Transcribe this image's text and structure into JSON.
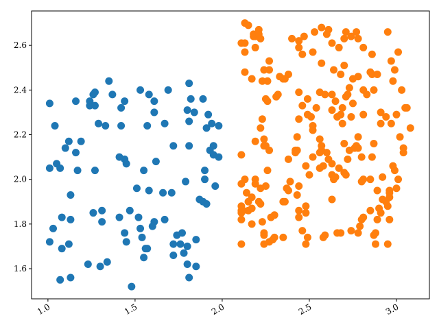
{
  "chart_data": {
    "type": "scatter",
    "xlim": [
      0.906,
      3.189
    ],
    "ylim": [
      1.465,
      2.754
    ],
    "xticks": [
      {
        "value": 1,
        "label": "1.0"
      },
      {
        "value": 1.5,
        "label": "1.5"
      },
      {
        "value": 2,
        "label": "2.0"
      },
      {
        "value": 2.5,
        "label": "2.5"
      },
      {
        "value": 3,
        "label": "3.0"
      }
    ],
    "yticks": [
      1.6,
      1.8,
      {
        "value": 2,
        "label": "2.0"
      },
      2.2,
      2.4,
      2.6
    ],
    "grid": false,
    "series": [
      {
        "color": "#1f77b4",
        "x": [
          1.01,
          1.04,
          1.01,
          1.05,
          1.07,
          1.03,
          1.01,
          1.08,
          1.08,
          1.1,
          1.12,
          1.13,
          1.13,
          1.12,
          1.13,
          1.07,
          1.16,
          1.16,
          1.17,
          1.19,
          1.24,
          1.24,
          1.26,
          1.27,
          1.27,
          1.27,
          1.29,
          1.26,
          1.31,
          1.31,
          1.23,
          1.3,
          1.34,
          1.33,
          1.35,
          1.37,
          1.42,
          1.44,
          1.42,
          1.41,
          1.44,
          1.45,
          1.41,
          1.44,
          1.45,
          1.47,
          1.51,
          1.52,
          1.53,
          1.54,
          1.55,
          1.56,
          1.57,
          1.58,
          1.55,
          1.57,
          1.53,
          1.58,
          1.61,
          1.61,
          1.62,
          1.61,
          1.66,
          1.67,
          1.69,
          1.67,
          1.71,
          1.72,
          1.72,
          1.72,
          1.74,
          1.77,
          1.78,
          1.81,
          1.8,
          1.82,
          1.81,
          1.79,
          1.8,
          1.81,
          1.85,
          1.85,
          1.87,
          1.89,
          1.9,
          1.9,
          1.91,
          1.89,
          1.91,
          1.93,
          1.92,
          1.94,
          1.95,
          1.95,
          1.96,
          1.98,
          1.98,
          1.81,
          1.8,
          1.76,
          1.48,
          1.6,
          1.84
        ],
        "y": [
          2.34,
          2.24,
          2.05,
          2.07,
          2.05,
          1.78,
          1.72,
          1.69,
          1.83,
          2.14,
          2.17,
          1.93,
          1.82,
          1.71,
          1.56,
          1.55,
          2.35,
          2.12,
          2.04,
          2.17,
          2.35,
          2.33,
          2.38,
          2.39,
          2.33,
          2.04,
          2.25,
          1.85,
          1.86,
          1.81,
          1.62,
          1.61,
          1.63,
          2.24,
          2.44,
          2.38,
          2.32,
          2.35,
          2.24,
          2.1,
          2.09,
          2.07,
          1.83,
          1.76,
          1.72,
          1.86,
          1.96,
          1.83,
          1.78,
          1.74,
          1.65,
          1.69,
          1.69,
          1.95,
          2.04,
          2.24,
          2.4,
          2.38,
          2.35,
          2.3,
          2.08,
          1.81,
          1.94,
          1.82,
          2.4,
          2.25,
          1.94,
          2.15,
          1.71,
          1.66,
          1.75,
          1.76,
          1.67,
          2.26,
          2.31,
          2.36,
          2.15,
          1.99,
          1.62,
          1.56,
          1.61,
          1.73,
          1.91,
          1.9,
          2.0,
          2.04,
          1.89,
          2.36,
          2.23,
          2.13,
          2.29,
          2.25,
          2.15,
          2.11,
          1.97,
          2.1,
          2.24,
          2.43,
          1.7,
          1.71,
          1.52,
          1.79,
          2.3
        ]
      },
      {
        "color": "#ff7f0e",
        "x": [
          2.13,
          2.15,
          2.13,
          2.13,
          2.11,
          2.18,
          2.19,
          2.21,
          2.22,
          2.18,
          2.19,
          2.13,
          2.17,
          2.21,
          2.24,
          2.27,
          2.27,
          2.26,
          2.23,
          2.25,
          2.31,
          2.32,
          2.35,
          2.38,
          2.4,
          2.44,
          2.44,
          2.47,
          2.46,
          2.52,
          2.53,
          2.57,
          2.61,
          2.6,
          2.57,
          2.63,
          2.67,
          2.7,
          2.71,
          2.74,
          2.77,
          2.78,
          2.81,
          2.86,
          2.95,
          3.01,
          2.97,
          2.99,
          2.98,
          3.03,
          3.05,
          3.06,
          3.08,
          3.04,
          3.02,
          3.0,
          2.94,
          2.91,
          2.91,
          2.97,
          2.87,
          2.86,
          2.89,
          2.85,
          2.78,
          2.81,
          2.83,
          2.81,
          2.73,
          2.75,
          2.7,
          2.68,
          2.64,
          2.63,
          2.71,
          2.72,
          2.69,
          2.68,
          2.66,
          2.65,
          2.56,
          2.59,
          2.63,
          2.54,
          2.49,
          2.49,
          2.52,
          2.51,
          2.44,
          2.44,
          2.36,
          2.33,
          2.31,
          2.26,
          2.23,
          2.22,
          2.24,
          2.25,
          2.19,
          2.24,
          2.27,
          2.26,
          2.19,
          2.19,
          2.22,
          2.17,
          2.15,
          2.17,
          2.21,
          2.22,
          2.25,
          2.11,
          2.13,
          2.11,
          2.11,
          2.15,
          2.12,
          2.14,
          2.11,
          2.11,
          2.11,
          2.23,
          2.24,
          2.28,
          2.3,
          2.27,
          2.3,
          2.35,
          2.37,
          2.39,
          2.42,
          2.43,
          2.44,
          2.42,
          2.48,
          2.5,
          2.52,
          2.52,
          2.57,
          2.56,
          2.58,
          2.56,
          2.57,
          2.6,
          2.61,
          2.63,
          2.63,
          2.64,
          2.65,
          2.67,
          2.7,
          2.7,
          2.73,
          2.72,
          2.71,
          2.76,
          2.77,
          2.78,
          2.78,
          2.8,
          2.8,
          2.81,
          2.86,
          2.87,
          2.92,
          2.98,
          2.99,
          3.01,
          3.04,
          3.0,
          2.96,
          2.96,
          2.95,
          2.96,
          2.89,
          2.92,
          2.91,
          2.9,
          2.85,
          2.89,
          2.96,
          2.81,
          2.8,
          2.79,
          2.88,
          2.87,
          2.95,
          2.88,
          2.78,
          2.74,
          2.68,
          2.66,
          2.63,
          2.59,
          2.58,
          2.49,
          2.48,
          2.46,
          2.44,
          2.48,
          2.48,
          2.44,
          2.43,
          2.38,
          2.36,
          2.35,
          2.29,
          2.24,
          2.24,
          2.17,
          2.69,
          2.74,
          2.75,
          2.46,
          2.56,
          2.85,
          2.94,
          2.43,
          2.38,
          2.11
        ],
        "y": [
          2.7,
          2.69,
          2.61,
          2.57,
          2.61,
          2.64,
          2.64,
          2.67,
          2.63,
          2.65,
          2.59,
          2.48,
          2.45,
          2.65,
          2.49,
          2.53,
          2.49,
          2.44,
          2.44,
          2.36,
          2.37,
          2.38,
          2.45,
          2.47,
          2.63,
          2.62,
          2.59,
          2.64,
          2.56,
          2.57,
          2.66,
          2.68,
          2.67,
          2.65,
          2.52,
          2.61,
          2.59,
          2.63,
          2.66,
          2.64,
          2.66,
          2.63,
          2.59,
          2.56,
          2.66,
          2.57,
          2.53,
          2.49,
          2.44,
          2.4,
          2.32,
          2.32,
          2.23,
          2.14,
          2.19,
          2.29,
          2.28,
          2.3,
          2.25,
          2.25,
          2.4,
          2.47,
          2.47,
          2.48,
          2.46,
          2.4,
          2.38,
          2.29,
          2.41,
          2.45,
          2.51,
          2.47,
          2.49,
          2.38,
          2.37,
          2.38,
          2.32,
          2.29,
          2.28,
          2.35,
          2.39,
          2.38,
          2.31,
          2.32,
          2.36,
          2.29,
          2.22,
          2.28,
          2.27,
          2.39,
          2.45,
          2.46,
          2.37,
          2.35,
          2.27,
          2.23,
          2.18,
          2.15,
          2.17,
          2.15,
          2.13,
          2.04,
          2.0,
          1.98,
          1.96,
          1.92,
          1.9,
          1.87,
          1.9,
          1.89,
          1.97,
          2.11,
          2.0,
          1.98,
          1.86,
          1.86,
          1.86,
          1.94,
          1.85,
          1.82,
          1.71,
          1.81,
          1.75,
          1.83,
          1.84,
          1.72,
          1.74,
          1.9,
          1.96,
          1.99,
          2.12,
          2.13,
          1.97,
          2.13,
          2.06,
          2.02,
          2.1,
          2.24,
          2.13,
          2.05,
          2.06,
          2.18,
          2.15,
          2.12,
          2.09,
          2.07,
          2.02,
          2.0,
          2.01,
          2.05,
          2.03,
          2.16,
          2.13,
          2.09,
          2.02,
          2.14,
          2.15,
          2.19,
          2.14,
          2.1,
          1.99,
          2.0,
          2.1,
          2.16,
          2.01,
          2.06,
          2.04,
          2.0,
          2.12,
          1.96,
          1.95,
          1.94,
          1.88,
          1.92,
          1.95,
          1.91,
          1.85,
          1.87,
          1.86,
          1.82,
          1.82,
          1.83,
          1.82,
          1.79,
          1.76,
          1.75,
          1.71,
          1.71,
          1.76,
          1.77,
          1.76,
          1.76,
          1.91,
          1.75,
          1.74,
          1.74,
          1.71,
          1.77,
          1.86,
          1.88,
          1.85,
          1.83,
          1.93,
          1.95,
          1.9,
          1.74,
          1.73,
          1.71,
          1.76,
          1.8,
          2.25,
          2.28,
          2.34,
          2.33,
          2.12,
          2.0,
          1.9,
          2.19,
          2.09,
          1.88
        ]
      }
    ]
  }
}
